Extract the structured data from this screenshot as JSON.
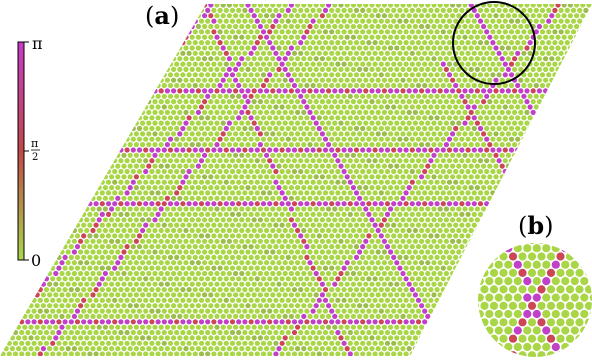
{
  "panel_a": {
    "label_open": "(",
    "label_letter": "a",
    "label_close": ")"
  },
  "panel_b": {
    "label_open": "(",
    "label_letter": "b",
    "label_close": ")"
  },
  "colorbar": {
    "tick_max": "π",
    "tick_mid_numerator": "π",
    "tick_mid_denominator": "2",
    "tick_min": "0",
    "color_low": "#a8d84a",
    "color_mid": "#c04848",
    "color_high": "#c83ac8"
  },
  "colors": {
    "lattice_base": "#a9d646",
    "lattice_dim": "#9cbc4e",
    "defect_red": "#cc4655",
    "defect_magenta": "#c23fc8",
    "zoom_ring": "#000000"
  }
}
